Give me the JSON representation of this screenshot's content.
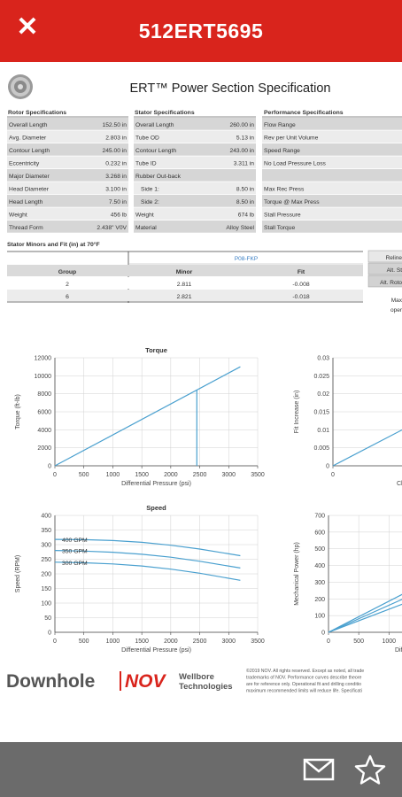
{
  "app": {
    "title": "512ERT5695"
  },
  "doc": {
    "title": "ERT™ Power Section Specification",
    "rotor": {
      "header": "Rotor Specifications",
      "rows": [
        [
          "Overall Length",
          "152.50 in"
        ],
        [
          "Avg. Diameter",
          "2.803 in"
        ],
        [
          "Contour Length",
          "245.00 in"
        ],
        [
          "Eccentricity",
          "0.232 in"
        ],
        [
          "Major Diameter",
          "3.268 in"
        ],
        [
          "Head Diameter",
          "3.100 in"
        ],
        [
          "Head Length",
          "7.50 in"
        ],
        [
          "Weight",
          "456 lb"
        ],
        [
          "Thread Form",
          "2.438\" V0V"
        ]
      ]
    },
    "stator": {
      "header": "Stator Specifications",
      "rows": [
        [
          "Overall Length",
          "260.00 in"
        ],
        [
          "Tube OD",
          "5.13 in"
        ],
        [
          "Contour Length",
          "243.00 in"
        ],
        [
          "Tube ID",
          "3.311 in"
        ],
        [
          "Rubber Out-back",
          ""
        ],
        [
          "Side 1:",
          "8.50 in"
        ],
        [
          "Side 2:",
          "8.50 in"
        ],
        [
          "Weight",
          "674 lb"
        ],
        [
          "Material",
          "Alloy Steel"
        ]
      ]
    },
    "performance": {
      "header": "Performance Specifications",
      "rows": [
        "Flow Range",
        "Rev per Unit Volume",
        "Speed Range",
        "No Load Pressure Loss",
        "",
        "Max Rec Press",
        "Torque @ Max Press",
        "Stall Pressure",
        "Stall Torque"
      ]
    },
    "fit": {
      "header": "Stator Minors and Fit (in) at 70°F",
      "group_title": "P08-FKP",
      "columns": [
        "Group",
        "Minor",
        "Fit"
      ],
      "rows": [
        [
          "2",
          "2.811",
          "-0.008"
        ],
        [
          "6",
          "2.821",
          "-0.018"
        ]
      ],
      "side_labels": [
        "Reline",
        "Alt. St",
        "Alt. Roto"
      ],
      "note_lines": [
        "Max",
        "oper"
      ]
    },
    "footer": {
      "brand1": "Downhole",
      "brand2": "NOV",
      "brand3a": "Wellbore",
      "brand3b": "Technologies",
      "disclaimer": [
        "©2019 NOV. All rights reserved. Except as noted, all trade",
        "trademarks of NOV. Performance curves describe theore",
        "are for reference only. Operational fit and drilling conditio",
        "maximum recommended limits will reduce life. Specificati"
      ]
    }
  },
  "chart_data": [
    {
      "type": "line",
      "title": "Torque",
      "xlabel": "Differential Pressure (psi)",
      "ylabel": "Torque (ft-lb)",
      "xlim": [
        0,
        3500
      ],
      "ylim": [
        0,
        12000
      ],
      "xticks": [
        "0",
        "500",
        "1000",
        "1500",
        "2000",
        "2500",
        "3000",
        "3500"
      ],
      "yticks": [
        "0",
        "2000",
        "4000",
        "6000",
        "8000",
        "10000",
        "12000"
      ],
      "series": [
        {
          "x": [
            0,
            3200
          ],
          "y": [
            0,
            11000
          ]
        }
      ],
      "annotations": [
        {
          "type": "vline",
          "x": 2450,
          "y": 8400
        }
      ]
    },
    {
      "type": "line",
      "title": "",
      "xlabel": "Ch",
      "ylabel": "Fit Increase (in)",
      "ylim": [
        0,
        0.03
      ],
      "yticks": [
        "0",
        "0.005",
        "0.01",
        "0.015",
        "0.02",
        "0.025",
        "0.03"
      ],
      "xticks": [
        "0"
      ],
      "series": [
        {
          "x": [
            0,
            1
          ],
          "y": [
            0,
            0.012
          ]
        }
      ]
    },
    {
      "type": "line",
      "title": "Speed",
      "xlabel": "Differential Pressure (psi)",
      "ylabel": "Speed (RPM)",
      "xlim": [
        0,
        3500
      ],
      "ylim": [
        0,
        400
      ],
      "xticks": [
        "0",
        "500",
        "1000",
        "1500",
        "2000",
        "2500",
        "3000",
        "3500"
      ],
      "yticks": [
        "0",
        "50",
        "100",
        "150",
        "200",
        "250",
        "300",
        "350",
        "400"
      ],
      "series": [
        {
          "name": "400 GPM",
          "x": [
            0,
            500,
            1000,
            1500,
            2000,
            2500,
            3200
          ],
          "y": [
            318,
            317,
            314,
            308,
            298,
            285,
            262
          ]
        },
        {
          "name": "350 GPM",
          "x": [
            0,
            500,
            1000,
            1500,
            2000,
            2500,
            3200
          ],
          "y": [
            280,
            278,
            274,
            267,
            257,
            243,
            220
          ]
        },
        {
          "name": "300 GPM",
          "x": [
            0,
            500,
            1000,
            1500,
            2000,
            2500,
            3200
          ],
          "y": [
            240,
            238,
            234,
            227,
            216,
            202,
            178
          ]
        }
      ]
    },
    {
      "type": "line",
      "title": "",
      "xlabel": "Diff",
      "ylabel": "Mechanical Power (hp)",
      "ylim": [
        0,
        700
      ],
      "yticks": [
        "0",
        "100",
        "200",
        "300",
        "400",
        "500",
        "600",
        "700"
      ],
      "xticks": [
        "0",
        "500",
        "1000"
      ],
      "series": [
        {
          "x": [
            0,
            1450
          ],
          "y": [
            0,
            270
          ]
        },
        {
          "x": [
            0,
            1450
          ],
          "y": [
            0,
            235
          ]
        },
        {
          "x": [
            0,
            1450
          ],
          "y": [
            0,
            200
          ]
        }
      ]
    }
  ]
}
